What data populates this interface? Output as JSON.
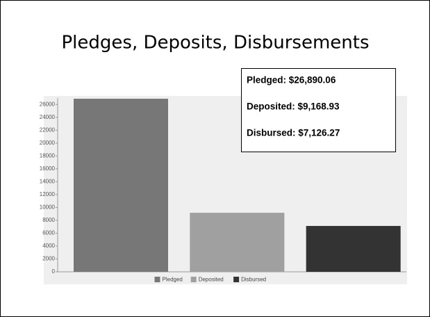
{
  "chart_data": {
    "type": "bar",
    "title": "Pledges, Deposits, Disbursements",
    "series": [
      {
        "name": "Pledged",
        "color": "#777777",
        "values": [
          26890.06
        ]
      },
      {
        "name": "Deposited",
        "color": "#a0a0a0",
        "values": [
          9168.93
        ]
      },
      {
        "name": "Disbursed",
        "color": "#333333",
        "values": [
          7126.27
        ]
      }
    ],
    "tooltip": [
      "Pledged: $26,890.06",
      "Deposited: $9,168.93",
      "Disbursed: $7,126.27"
    ],
    "ylim": [
      0,
      27000
    ],
    "yticks": [
      0,
      2000,
      4000,
      6000,
      8000,
      10000,
      12000,
      14000,
      16000,
      18000,
      20000,
      22000,
      24000,
      26000
    ],
    "legend": "bottom"
  }
}
